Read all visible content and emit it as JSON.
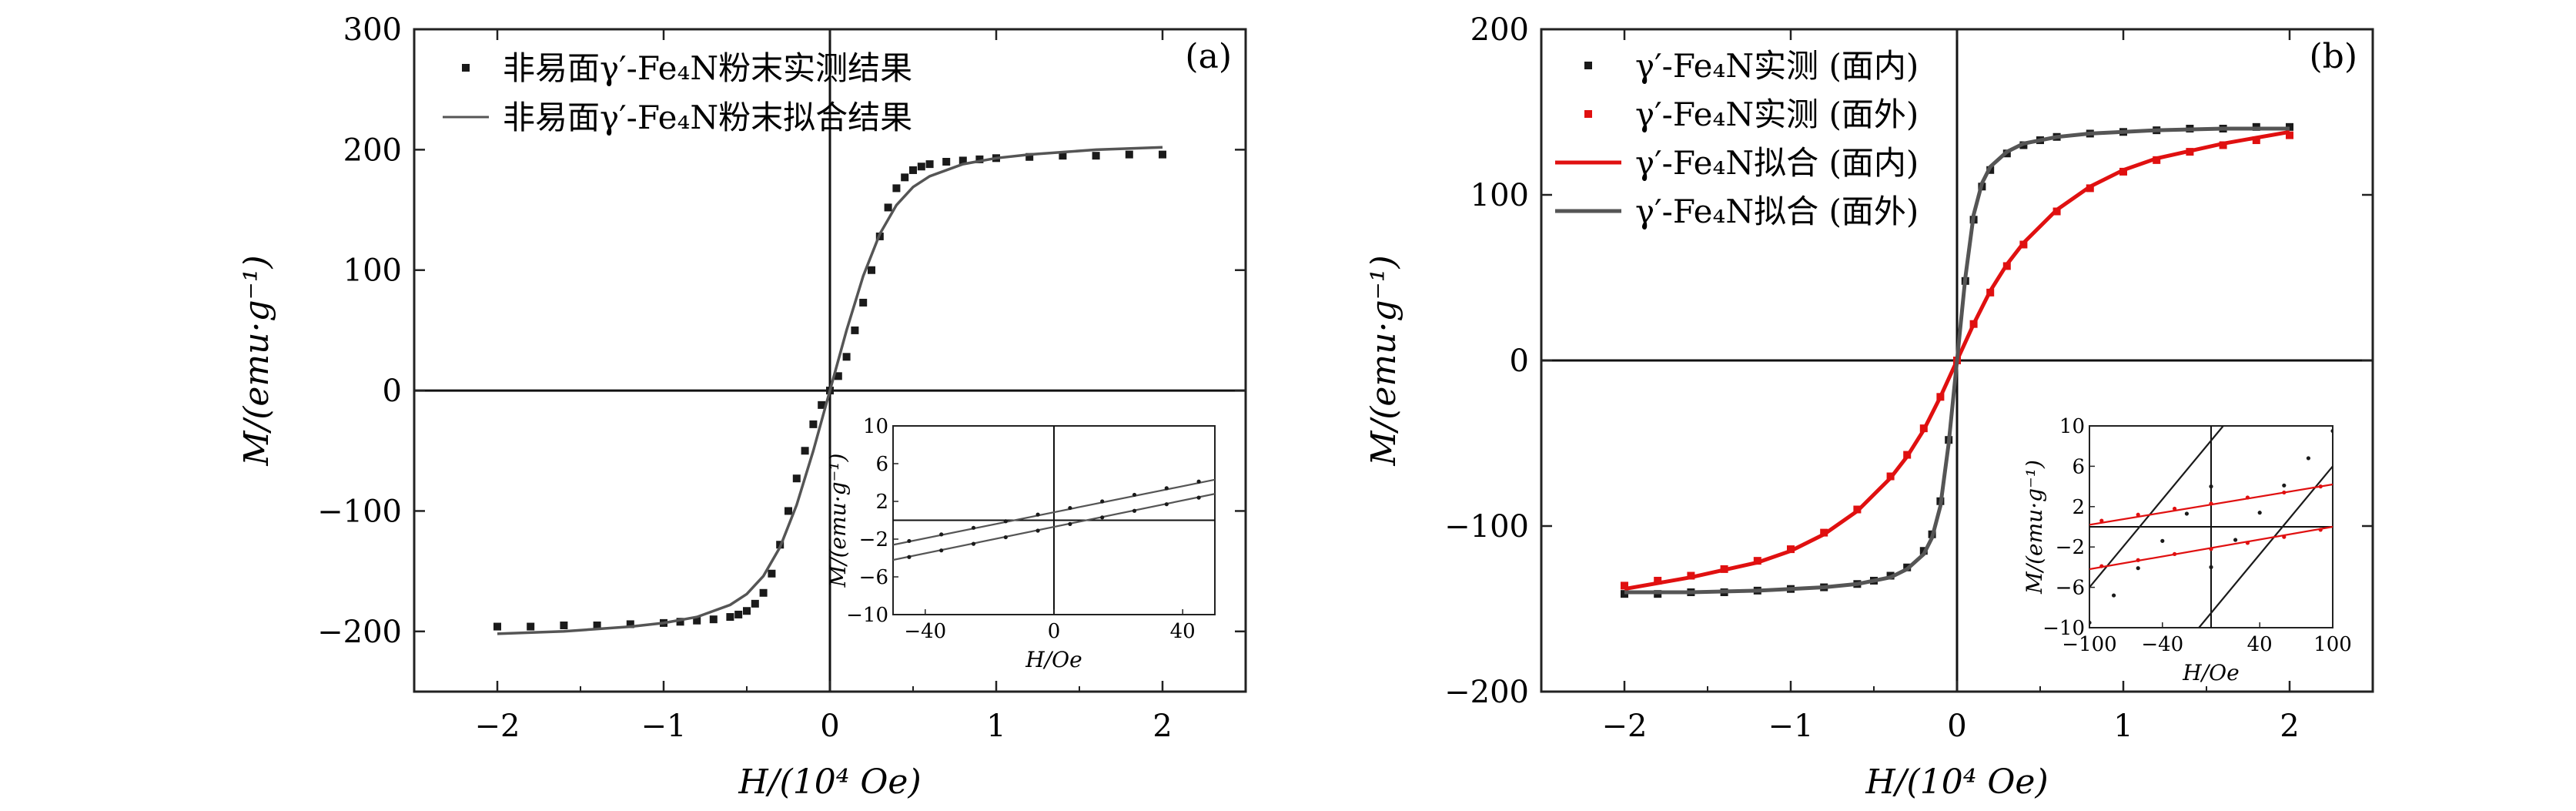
{
  "figure": {
    "colors": {
      "black": "#1a1a1a",
      "gray": "#555555",
      "red": "#e01010"
    }
  },
  "chart_data": [
    {
      "id": "a",
      "type": "scatter",
      "panel_label": "(a)",
      "xlabel": "H/(10⁴ Oe)",
      "ylabel": "M/(emu·g⁻¹)",
      "xlim": [
        -2.5,
        2.5
      ],
      "ylim": [
        -250,
        300
      ],
      "xticks": [
        -2,
        -1,
        0,
        1,
        2
      ],
      "xtick_labels": [
        "−2",
        "−1",
        "0",
        "1",
        "2"
      ],
      "yticks": [
        -200,
        -100,
        0,
        100,
        200,
        300
      ],
      "ytick_labels": [
        "−200",
        "−100",
        "0",
        "100",
        "200",
        "300"
      ],
      "legend_position": "top",
      "series": [
        {
          "name": "非易面γ′-Fe₄N粉末实测结果",
          "kind": "markers",
          "color": "#1a1a1a",
          "x": [
            -2.0,
            -1.8,
            -1.6,
            -1.4,
            -1.2,
            -1.0,
            -0.9,
            -0.8,
            -0.7,
            -0.6,
            -0.55,
            -0.5,
            -0.45,
            -0.4,
            -0.35,
            -0.3,
            -0.25,
            -0.2,
            -0.15,
            -0.1,
            -0.05,
            0.0,
            0.05,
            0.1,
            0.15,
            0.2,
            0.25,
            0.3,
            0.35,
            0.4,
            0.45,
            0.5,
            0.55,
            0.6,
            0.7,
            0.8,
            0.9,
            1.0,
            1.2,
            1.4,
            1.6,
            1.8,
            2.0
          ],
          "y": [
            -196,
            -196,
            -195,
            -195,
            -194,
            -193,
            -192,
            -191,
            -190,
            -188,
            -186,
            -183,
            -177,
            -168,
            -152,
            -128,
            -100,
            -73,
            -50,
            -28,
            -12,
            0,
            12,
            28,
            50,
            73,
            100,
            128,
            152,
            168,
            177,
            183,
            186,
            188,
            190,
            191,
            192,
            193,
            194,
            195,
            195,
            196,
            196
          ]
        },
        {
          "name": "非易面γ′-Fe₄N粉末拟合结果",
          "kind": "line",
          "color": "#555555",
          "x": [
            -2.0,
            -1.6,
            -1.2,
            -1.0,
            -0.8,
            -0.6,
            -0.5,
            -0.4,
            -0.3,
            -0.2,
            -0.1,
            0.0,
            0.1,
            0.2,
            0.3,
            0.4,
            0.5,
            0.6,
            0.8,
            1.0,
            1.2,
            1.6,
            2.0
          ],
          "y": [
            -202,
            -200,
            -196,
            -193,
            -188,
            -178,
            -169,
            -154,
            -130,
            -95,
            -50,
            0,
            50,
            95,
            130,
            154,
            169,
            178,
            188,
            193,
            196,
            200,
            202
          ]
        }
      ],
      "inset": {
        "xlabel": "H/Oe",
        "ylabel": "M/(emu·g⁻¹)",
        "xlim": [
          -50,
          50
        ],
        "ylim": [
          -10,
          10
        ],
        "xticks": [
          -40,
          0,
          40
        ],
        "xtick_labels": [
          "−40",
          "0",
          "40"
        ],
        "yticks": [
          -10,
          -6,
          -2,
          2,
          6,
          10
        ],
        "ytick_labels": [
          "−10",
          "−6",
          "−2",
          "2",
          "6",
          "10"
        ],
        "series": [
          {
            "name": "fit-upper",
            "kind": "line",
            "color": "#555555",
            "x": [
              -50,
              50
            ],
            "y": [
              -2.6,
              4.3
            ]
          },
          {
            "name": "fit-lower",
            "kind": "line",
            "color": "#555555",
            "x": [
              -50,
              50
            ],
            "y": [
              -4.2,
              2.8
            ]
          },
          {
            "name": "measured-upper",
            "kind": "dots",
            "color": "#1a1a1a",
            "x": [
              -45,
              -35,
              -25,
              -15,
              -5,
              5,
              15,
              25,
              35,
              45
            ],
            "y": [
              -2.2,
              -1.5,
              -0.8,
              -0.1,
              0.6,
              1.3,
              2.0,
              2.7,
              3.4,
              4.1
            ]
          },
          {
            "name": "measured-lower",
            "kind": "dots",
            "color": "#1a1a1a",
            "x": [
              -45,
              -35,
              -25,
              -15,
              -5,
              5,
              15,
              25,
              35,
              45
            ],
            "y": [
              -3.9,
              -3.2,
              -2.5,
              -1.8,
              -1.1,
              -0.4,
              0.3,
              1.0,
              1.7,
              2.4
            ]
          }
        ]
      }
    },
    {
      "id": "b",
      "type": "scatter",
      "panel_label": "(b)",
      "xlabel": "H/(10⁴ Oe)",
      "ylabel": "M/(emu·g⁻¹)",
      "xlim": [
        -2.5,
        2.5
      ],
      "ylim": [
        -200,
        200
      ],
      "xticks": [
        -2,
        -1,
        0,
        1,
        2
      ],
      "xtick_labels": [
        "−2",
        "−1",
        "0",
        "1",
        "2"
      ],
      "yticks": [
        -200,
        -100,
        0,
        100,
        200
      ],
      "ytick_labels": [
        "−200",
        "−100",
        "0",
        "100",
        "200"
      ],
      "legend_position": "top-left",
      "series": [
        {
          "name": "γ′-Fe₄N实测 (面内)",
          "kind": "markers",
          "color": "#1a1a1a",
          "x": [
            -2.0,
            -1.8,
            -1.6,
            -1.4,
            -1.2,
            -1.0,
            -0.8,
            -0.6,
            -0.5,
            -0.4,
            -0.3,
            -0.2,
            -0.15,
            -0.1,
            -0.05,
            0.0,
            0.05,
            0.1,
            0.15,
            0.2,
            0.3,
            0.4,
            0.5,
            0.6,
            0.8,
            1.0,
            1.2,
            1.4,
            1.6,
            1.8,
            2.0
          ],
          "y": [
            -141,
            -141,
            -140,
            -140,
            -139,
            -138,
            -137,
            -135,
            -133,
            -130,
            -125,
            -115,
            -105,
            -85,
            -48,
            0,
            48,
            85,
            105,
            115,
            125,
            130,
            133,
            135,
            137,
            138,
            139,
            140,
            140,
            141,
            141
          ]
        },
        {
          "name": "γ′-Fe₄N实测 (面外)",
          "kind": "markers",
          "color": "#e01010",
          "x": [
            -2.0,
            -1.8,
            -1.6,
            -1.4,
            -1.2,
            -1.0,
            -0.8,
            -0.6,
            -0.4,
            -0.3,
            -0.2,
            -0.1,
            0.0,
            0.1,
            0.2,
            0.3,
            0.4,
            0.6,
            0.8,
            1.0,
            1.2,
            1.4,
            1.6,
            1.8,
            2.0
          ],
          "y": [
            -136,
            -133,
            -130,
            -126,
            -121,
            -114,
            -104,
            -90,
            -70,
            -57,
            -41,
            -22,
            0,
            22,
            41,
            57,
            70,
            90,
            104,
            114,
            121,
            126,
            130,
            133,
            136
          ]
        },
        {
          "name": "γ′-Fe₄N拟合 (面内)",
          "kind": "line",
          "color": "#e01010",
          "x": [
            -2.0,
            -1.6,
            -1.2,
            -1.0,
            -0.8,
            -0.6,
            -0.4,
            -0.3,
            -0.2,
            -0.1,
            0.0,
            0.1,
            0.2,
            0.3,
            0.4,
            0.6,
            0.8,
            1.0,
            1.2,
            1.6,
            2.0
          ],
          "y": [
            -138,
            -131,
            -122,
            -115,
            -105,
            -91,
            -71,
            -58,
            -42,
            -22,
            0,
            22,
            42,
            58,
            71,
            91,
            105,
            115,
            122,
            131,
            138
          ]
        },
        {
          "name": "γ′-Fe₄N拟合 (面外)",
          "kind": "line",
          "color": "#555555",
          "x": [
            -2.0,
            -1.6,
            -1.2,
            -1.0,
            -0.8,
            -0.6,
            -0.4,
            -0.3,
            -0.2,
            -0.15,
            -0.1,
            -0.05,
            0.0,
            0.05,
            0.1,
            0.15,
            0.2,
            0.3,
            0.4,
            0.6,
            0.8,
            1.0,
            1.2,
            1.6,
            2.0
          ],
          "y": [
            -140,
            -140,
            -139,
            -138,
            -137,
            -135,
            -131,
            -126,
            -117,
            -107,
            -88,
            -50,
            0,
            50,
            88,
            107,
            117,
            126,
            131,
            135,
            137,
            138,
            139,
            140,
            140
          ]
        }
      ],
      "inset": {
        "xlabel": "H/Oe",
        "ylabel": "M/(emu·g⁻¹)",
        "xlim": [
          -100,
          100
        ],
        "ylim": [
          -10,
          10
        ],
        "xticks": [
          -100,
          -40,
          40,
          100
        ],
        "xtick_labels": [
          "−100",
          "−40",
          "40",
          "100"
        ],
        "yticks": [
          -10,
          -6,
          -2,
          2,
          6,
          10
        ],
        "ytick_labels": [
          "−10",
          "−6",
          "−2",
          "2",
          "6",
          "10"
        ],
        "series": [
          {
            "name": "inplane-fit-upper",
            "kind": "line",
            "color": "#1a1a1a",
            "x": [
              -100,
              10
            ],
            "y": [
              -6,
              10
            ]
          },
          {
            "name": "inplane-fit-lower",
            "kind": "line",
            "color": "#1a1a1a",
            "x": [
              -10,
              100
            ],
            "y": [
              -10,
              6
            ]
          },
          {
            "name": "inplane-meas-upper",
            "kind": "dots",
            "color": "#1a1a1a",
            "x": [
              -100,
              -80,
              -60,
              -40,
              -20,
              0
            ],
            "y": [
              -9.5,
              -6.8,
              -4.1,
              -1.4,
              1.3,
              4.0
            ]
          },
          {
            "name": "inplane-meas-lower",
            "kind": "dots",
            "color": "#1a1a1a",
            "x": [
              0,
              20,
              40,
              60,
              80,
              100
            ],
            "y": [
              -4.0,
              -1.3,
              1.4,
              4.1,
              6.8,
              9.5
            ]
          },
          {
            "name": "outplane-fit-upper",
            "kind": "line",
            "color": "#e01010",
            "x": [
              -100,
              100
            ],
            "y": [
              0.2,
              4.2
            ]
          },
          {
            "name": "outplane-fit-lower",
            "kind": "line",
            "color": "#e01010",
            "x": [
              -100,
              100
            ],
            "y": [
              -4.2,
              0
            ]
          },
          {
            "name": "outplane-meas-upper",
            "kind": "dots",
            "color": "#e01010",
            "x": [
              -90,
              -60,
              -30,
              0,
              30,
              60,
              90
            ],
            "y": [
              0.6,
              1.2,
              1.8,
              2.3,
              2.9,
              3.4,
              4.0
            ]
          },
          {
            "name": "outplane-meas-lower",
            "kind": "dots",
            "color": "#e01010",
            "x": [
              -90,
              -60,
              -30,
              0,
              30,
              60,
              90
            ],
            "y": [
              -3.9,
              -3.3,
              -2.7,
              -2.2,
              -1.6,
              -1.0,
              -0.3
            ]
          }
        ]
      }
    }
  ]
}
